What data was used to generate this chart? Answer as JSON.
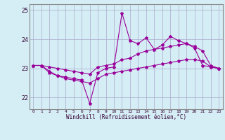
{
  "xlabel": "Windchill (Refroidissement éolien,°C)",
  "x": [
    0,
    1,
    2,
    3,
    4,
    5,
    6,
    7,
    8,
    9,
    10,
    11,
    12,
    13,
    14,
    15,
    16,
    17,
    18,
    19,
    20,
    21,
    22,
    23
  ],
  "line1": [
    23.1,
    23.1,
    22.9,
    22.75,
    22.7,
    22.65,
    22.6,
    21.8,
    22.85,
    23.0,
    23.05,
    24.9,
    23.95,
    23.85,
    24.05,
    23.65,
    23.8,
    24.1,
    23.95,
    23.85,
    23.7,
    23.1,
    23.05,
    23.0
  ],
  "line2": [
    23.1,
    23.1,
    23.05,
    23.0,
    22.95,
    22.9,
    22.85,
    22.8,
    23.05,
    23.1,
    23.15,
    23.3,
    23.35,
    23.5,
    23.6,
    23.65,
    23.7,
    23.75,
    23.8,
    23.85,
    23.75,
    23.6,
    23.1,
    23.0
  ],
  "line3": [
    23.1,
    23.1,
    22.85,
    22.75,
    22.65,
    22.6,
    22.55,
    22.5,
    22.65,
    22.8,
    22.85,
    22.9,
    22.95,
    23.0,
    23.05,
    23.1,
    23.15,
    23.2,
    23.25,
    23.3,
    23.3,
    23.25,
    23.05,
    23.0
  ],
  "line_color": "#990099",
  "bg_color": "#d5edf5",
  "grid_color": "#aaaacc",
  "ylim": [
    21.6,
    25.2
  ],
  "yticks": [
    22,
    23,
    24,
    25
  ],
  "xticks": [
    0,
    1,
    2,
    3,
    4,
    5,
    6,
    7,
    8,
    9,
    10,
    11,
    12,
    13,
    14,
    15,
    16,
    17,
    18,
    19,
    20,
    21,
    22,
    23
  ]
}
